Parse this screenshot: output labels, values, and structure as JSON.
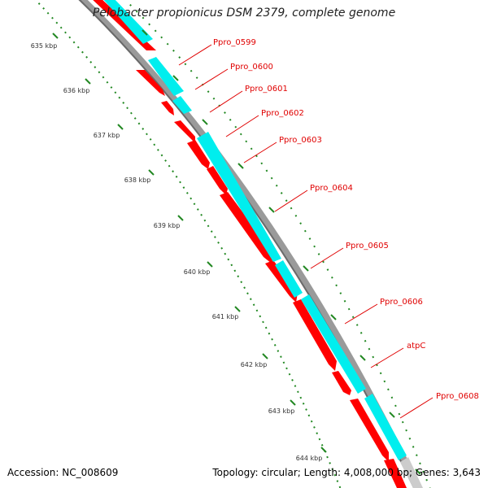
{
  "header": {
    "title": "Pelobacter propionicus DSM 2379, complete genome"
  },
  "footer": {
    "accession": "Accession: NC_008609",
    "summary": "Topology: circular; Length: 4,008,000 bp; Genes: 3,643"
  },
  "colors": {
    "forward_cds": "#ff0000",
    "feature_track": "#00eeee",
    "backbone": "#999999",
    "tick": "#228822",
    "label": "#e00000"
  },
  "kbp_ticks": [
    "635 kbp",
    "636 kbp",
    "637 kbp",
    "638 kbp",
    "639 kbp",
    "640 kbp",
    "641 kbp",
    "642 kbp",
    "643 kbp",
    "644 kbp"
  ],
  "genes": [
    {
      "label": "Ppro_0599"
    },
    {
      "label": "Ppro_0600"
    },
    {
      "label": "Ppro_0601"
    },
    {
      "label": "Ppro_0602"
    },
    {
      "label": "Ppro_0603"
    },
    {
      "label": "Ppro_0604"
    },
    {
      "label": "Ppro_0605"
    },
    {
      "label": "Ppro_0606"
    },
    {
      "label": "atpC"
    },
    {
      "label": "Ppro_0608"
    }
  ]
}
